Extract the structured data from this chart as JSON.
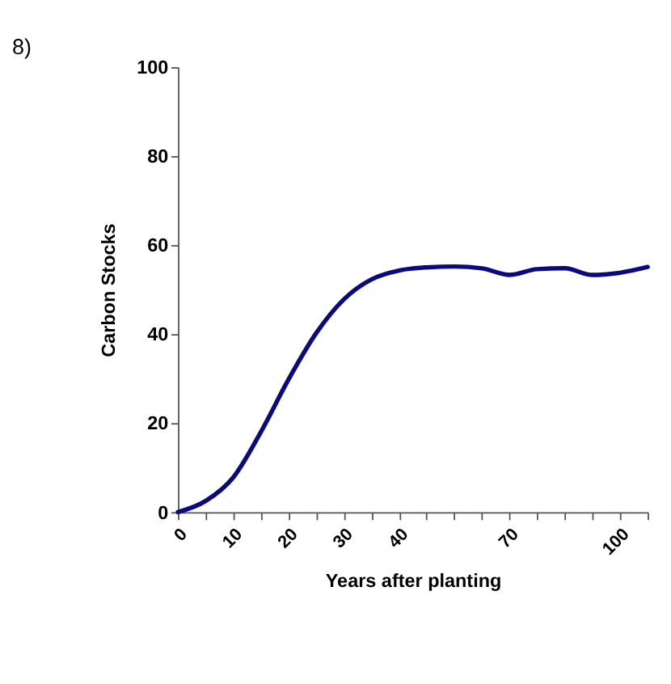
{
  "chart_data": {
    "type": "line",
    "title": "8)",
    "xlabel": "Years after planting",
    "ylabel": "Carbon Stocks",
    "categories": [
      "0",
      null,
      "10",
      null,
      "20",
      null,
      "30",
      null,
      "40",
      null,
      null,
      null,
      "70",
      null,
      null,
      null,
      "100",
      null
    ],
    "series": [
      {
        "color": "#0a0a80",
        "values": [
          0,
          2.5,
          7.8,
          18,
          29.8,
          40.2,
          47.8,
          52.3,
          54.3,
          55,
          55.2,
          54.8,
          53.3,
          54.6,
          54.8,
          53.3,
          53.8,
          55.1
        ]
      }
    ],
    "ylim": [
      0,
      100
    ],
    "yticks": [
      0,
      20,
      40,
      60,
      80,
      100
    ],
    "grid": false,
    "marker": "none",
    "line_style": "solid"
  }
}
